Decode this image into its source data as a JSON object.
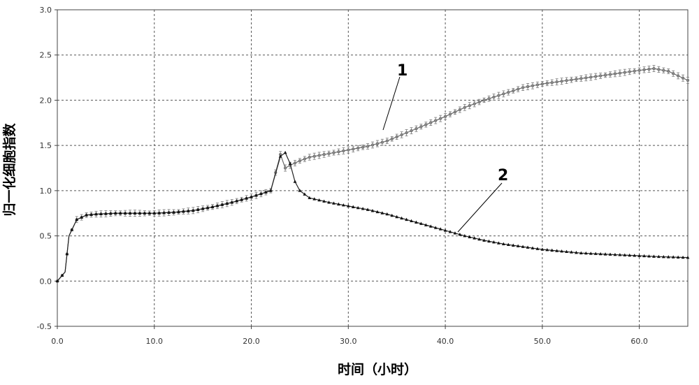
{
  "chart_data": {
    "type": "line",
    "title": "",
    "xlabel": "时间（小时）",
    "ylabel": "归一化细胞指数",
    "xlim": [
      0,
      65
    ],
    "ylim": [
      -0.5,
      3.0
    ],
    "x_ticks": [
      "0.0",
      "10.0",
      "20.0",
      "30.0",
      "40.0",
      "50.0",
      "60.0"
    ],
    "y_ticks": [
      "-0.5",
      "0.0",
      "0.5",
      "1.0",
      "1.5",
      "2.0",
      "2.5",
      "3.0"
    ],
    "grid": true,
    "legend": "none",
    "error_bars": true,
    "series": [
      {
        "name": "1",
        "marker": "circle",
        "x": [
          0,
          0.8,
          1.2,
          2,
          3,
          4,
          6,
          8,
          10,
          12,
          14,
          16,
          18,
          20,
          22,
          23,
          23.5,
          24,
          25,
          26,
          28,
          30,
          32,
          34,
          36,
          38,
          40,
          42,
          44,
          46,
          48,
          50,
          52,
          54,
          56,
          58,
          60,
          61.5,
          63,
          65
        ],
        "y": [
          0.0,
          0.1,
          0.5,
          0.68,
          0.73,
          0.74,
          0.75,
          0.75,
          0.75,
          0.76,
          0.78,
          0.82,
          0.87,
          0.93,
          1.0,
          1.4,
          1.25,
          1.28,
          1.33,
          1.37,
          1.41,
          1.45,
          1.49,
          1.55,
          1.64,
          1.73,
          1.82,
          1.92,
          2.0,
          2.07,
          2.14,
          2.18,
          2.21,
          2.24,
          2.27,
          2.3,
          2.33,
          2.35,
          2.32,
          2.22
        ]
      },
      {
        "name": "2",
        "marker": "triangle",
        "x": [
          0,
          0.8,
          1.2,
          2,
          3,
          4,
          6,
          8,
          10,
          12,
          14,
          16,
          18,
          20,
          22,
          23,
          23.5,
          24,
          24.5,
          25,
          26,
          28,
          30,
          32,
          34,
          36,
          38,
          40,
          42,
          44,
          46,
          48,
          50,
          52,
          54,
          56,
          58,
          60,
          62,
          65
        ],
        "y": [
          0.0,
          0.1,
          0.5,
          0.68,
          0.73,
          0.74,
          0.75,
          0.75,
          0.75,
          0.76,
          0.78,
          0.82,
          0.87,
          0.93,
          1.0,
          1.38,
          1.42,
          1.3,
          1.1,
          1.0,
          0.92,
          0.87,
          0.83,
          0.79,
          0.74,
          0.68,
          0.62,
          0.56,
          0.5,
          0.45,
          0.41,
          0.38,
          0.35,
          0.33,
          0.31,
          0.3,
          0.29,
          0.28,
          0.27,
          0.26
        ]
      }
    ],
    "annotations": [
      "1",
      "2"
    ]
  }
}
